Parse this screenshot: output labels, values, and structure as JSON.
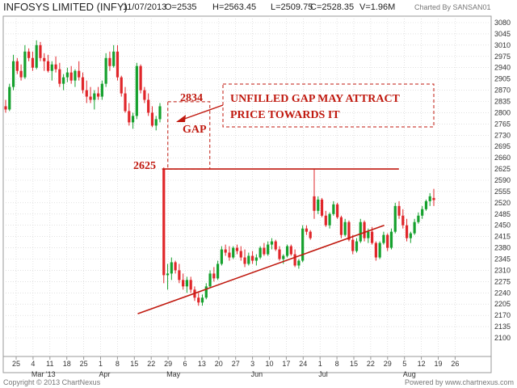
{
  "header": {
    "title": "INFOSYS LIMITED (INFY)",
    "date": "11/07/2013",
    "open": "O=2535",
    "high": "H=2563.45",
    "low": "L=2509.75",
    "close": "C=2528.35",
    "volume": "V=1.96M",
    "charted_by": "Charted By SANSAN01"
  },
  "footer": {
    "copyright": "Copyright © 2013 ChartNexus",
    "powered_by": "Powered by www.chartnexus.com"
  },
  "colors": {
    "up": "#16a12e",
    "down": "#e0262a",
    "annotation": "#c0190f",
    "grid": "#cfcfcf",
    "frame": "#999999"
  },
  "chart_data": {
    "type": "candlestick",
    "title": "INFOSYS LIMITED (INFY)",
    "ylim": [
      2100,
      3080
    ],
    "yticks": [
      "3080",
      "3045",
      "3010",
      "2975",
      "2940",
      "2905",
      "2870",
      "2835",
      "2800",
      "2765",
      "2730",
      "2695",
      "2660",
      "2625",
      "2590",
      "2555",
      "2520",
      "2485",
      "2450",
      "2415",
      "2380",
      "2345",
      "2310",
      "2275",
      "2240",
      "2205",
      "2170",
      "2135",
      "2100"
    ],
    "xticks": [
      "25",
      "4",
      "11",
      "18",
      "25",
      "1",
      "8",
      "15",
      "22",
      "29",
      "6",
      "13",
      "20",
      "27",
      "3",
      "10",
      "17",
      "24",
      "1",
      "8",
      "15",
      "22",
      "29",
      "5",
      "12",
      "19",
      "26"
    ],
    "month_labels": [
      {
        "label": "Mar '13",
        "tick": 1
      },
      {
        "label": "Apr",
        "tick": 5
      },
      {
        "label": "May",
        "tick": 9
      },
      {
        "label": "Jun",
        "tick": 14
      },
      {
        "label": "Jul",
        "tick": 18
      },
      {
        "label": "Aug",
        "tick": 23
      }
    ],
    "candles": [
      [
        2820,
        2840,
        2800,
        2810
      ],
      [
        2810,
        2890,
        2805,
        2880
      ],
      [
        2880,
        2980,
        2870,
        2960
      ],
      [
        2960,
        2970,
        2920,
        2930
      ],
      [
        2930,
        2950,
        2900,
        2910
      ],
      [
        2910,
        3010,
        2905,
        2990
      ],
      [
        2990,
        3000,
        2960,
        2970
      ],
      [
        2970,
        2990,
        2930,
        2940
      ],
      [
        2940,
        3025,
        2935,
        3010
      ],
      [
        3010,
        3020,
        2960,
        2970
      ],
      [
        2970,
        2985,
        2930,
        2960
      ],
      [
        2960,
        2980,
        2925,
        2930
      ],
      [
        2930,
        2960,
        2900,
        2950
      ],
      [
        2950,
        2975,
        2925,
        2935
      ],
      [
        2935,
        2955,
        2880,
        2890
      ],
      [
        2890,
        2920,
        2870,
        2910
      ],
      [
        2910,
        2940,
        2895,
        2925
      ],
      [
        2925,
        2945,
        2890,
        2900
      ],
      [
        2900,
        2935,
        2880,
        2930
      ],
      [
        2930,
        2960,
        2900,
        2910
      ],
      [
        2910,
        2925,
        2860,
        2870
      ],
      [
        2870,
        2900,
        2830,
        2850
      ],
      [
        2850,
        2880,
        2830,
        2840
      ],
      [
        2840,
        2870,
        2810,
        2860
      ],
      [
        2860,
        2880,
        2840,
        2850
      ],
      [
        2850,
        2900,
        2840,
        2890
      ],
      [
        2890,
        2985,
        2880,
        2970
      ],
      [
        2970,
        2990,
        2930,
        2945
      ],
      [
        2945,
        3010,
        2940,
        2990
      ],
      [
        2990,
        3010,
        2900,
        2910
      ],
      [
        2910,
        2915,
        2850,
        2860
      ],
      [
        2860,
        2880,
        2800,
        2805
      ],
      [
        2805,
        2830,
        2760,
        2770
      ],
      [
        2770,
        2800,
        2750,
        2790
      ],
      [
        2790,
        2955,
        2780,
        2945
      ],
      [
        2945,
        2950,
        2860,
        2870
      ],
      [
        2870,
        2880,
        2830,
        2840
      ],
      [
        2840,
        2860,
        2790,
        2800
      ],
      [
        2800,
        2820,
        2755,
        2760
      ],
      [
        2760,
        2790,
        2745,
        2780
      ],
      [
        2780,
        2830,
        2770,
        2820
      ],
      [
        2625,
        2630,
        2270,
        2295
      ],
      [
        2295,
        2330,
        2250,
        2300
      ],
      [
        2300,
        2350,
        2280,
        2335
      ],
      [
        2335,
        2340,
        2300,
        2310
      ],
      [
        2310,
        2330,
        2270,
        2280
      ],
      [
        2280,
        2300,
        2250,
        2260
      ],
      [
        2260,
        2290,
        2240,
        2280
      ],
      [
        2280,
        2290,
        2240,
        2250
      ],
      [
        2250,
        2260,
        2215,
        2225
      ],
      [
        2225,
        2240,
        2200,
        2210
      ],
      [
        2210,
        2235,
        2200,
        2225
      ],
      [
        2225,
        2270,
        2220,
        2260
      ],
      [
        2260,
        2310,
        2255,
        2300
      ],
      [
        2300,
        2320,
        2275,
        2285
      ],
      [
        2285,
        2340,
        2280,
        2330
      ],
      [
        2330,
        2385,
        2325,
        2375
      ],
      [
        2375,
        2390,
        2355,
        2365
      ],
      [
        2365,
        2385,
        2340,
        2350
      ],
      [
        2350,
        2385,
        2345,
        2380
      ],
      [
        2380,
        2390,
        2360,
        2370
      ],
      [
        2370,
        2385,
        2340,
        2350
      ],
      [
        2350,
        2375,
        2320,
        2330
      ],
      [
        2330,
        2365,
        2325,
        2355
      ],
      [
        2355,
        2370,
        2330,
        2340
      ],
      [
        2340,
        2360,
        2325,
        2350
      ],
      [
        2350,
        2385,
        2345,
        2380
      ],
      [
        2380,
        2395,
        2355,
        2360
      ],
      [
        2360,
        2400,
        2355,
        2390
      ],
      [
        2390,
        2410,
        2375,
        2400
      ],
      [
        2400,
        2405,
        2370,
        2375
      ],
      [
        2375,
        2385,
        2340,
        2345
      ],
      [
        2345,
        2360,
        2330,
        2355
      ],
      [
        2355,
        2390,
        2350,
        2385
      ],
      [
        2385,
        2390,
        2355,
        2360
      ],
      [
        2360,
        2375,
        2320,
        2325
      ],
      [
        2325,
        2345,
        2315,
        2340
      ],
      [
        2340,
        2450,
        2335,
        2440
      ],
      [
        2440,
        2450,
        2420,
        2430
      ],
      [
        2430,
        2435,
        2405,
        2410
      ],
      [
        2540,
        2625,
        2470,
        2495
      ],
      [
        2495,
        2540,
        2485,
        2530
      ],
      [
        2530,
        2535,
        2475,
        2480
      ],
      [
        2480,
        2495,
        2445,
        2450
      ],
      [
        2450,
        2490,
        2440,
        2485
      ],
      [
        2485,
        2525,
        2480,
        2515
      ],
      [
        2515,
        2520,
        2470,
        2475
      ],
      [
        2475,
        2480,
        2410,
        2420
      ],
      [
        2420,
        2470,
        2415,
        2460
      ],
      [
        2460,
        2465,
        2400,
        2405
      ],
      [
        2405,
        2420,
        2360,
        2370
      ],
      [
        2370,
        2410,
        2365,
        2400
      ],
      [
        2400,
        2470,
        2395,
        2460
      ],
      [
        2460,
        2465,
        2400,
        2410
      ],
      [
        2410,
        2440,
        2395,
        2430
      ],
      [
        2430,
        2445,
        2390,
        2395
      ],
      [
        2395,
        2400,
        2340,
        2350
      ],
      [
        2350,
        2400,
        2345,
        2395
      ],
      [
        2395,
        2430,
        2390,
        2420
      ],
      [
        2420,
        2425,
        2370,
        2380
      ],
      [
        2380,
        2440,
        2375,
        2430
      ],
      [
        2430,
        2520,
        2425,
        2510
      ],
      [
        2510,
        2525,
        2470,
        2480
      ],
      [
        2480,
        2500,
        2440,
        2450
      ],
      [
        2450,
        2470,
        2400,
        2410
      ],
      [
        2410,
        2430,
        2395,
        2425
      ],
      [
        2425,
        2470,
        2420,
        2460
      ],
      [
        2460,
        2490,
        2455,
        2480
      ],
      [
        2480,
        2510,
        2470,
        2500
      ],
      [
        2500,
        2530,
        2495,
        2525
      ],
      [
        2525,
        2550,
        2510,
        2540
      ],
      [
        2535,
        2563.45,
        2509.75,
        2528.35
      ]
    ],
    "resistance_line": {
      "value": 2625,
      "label": "2625",
      "from_candle": 41,
      "to_tick": 22
    },
    "gap": {
      "low": 2625,
      "high": 2834,
      "label": "GAP",
      "high_label": "2834"
    },
    "trendline": {
      "from": {
        "tick": 7.2,
        "price": 2175
      },
      "to": {
        "tick": 21.8,
        "price": 2450
      }
    },
    "note": {
      "lines": [
        "UNFILLED GAP MAY ATTRACT",
        "PRICE TOWARDS IT"
      ]
    }
  }
}
